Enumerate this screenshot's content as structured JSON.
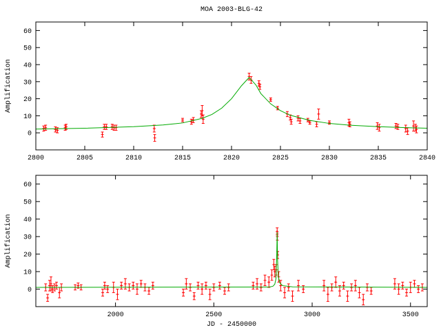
{
  "chart_data": [
    {
      "type": "scatter",
      "title": "MOA 2003-BLG-42",
      "ylabel": "Amplification",
      "xlim": [
        2800,
        2840
      ],
      "ylim": [
        -10,
        65
      ],
      "xticks": [
        2800,
        2805,
        2810,
        2815,
        2820,
        2825,
        2830,
        2835,
        2840
      ],
      "yticks": [
        0,
        10,
        20,
        30,
        40,
        50,
        60
      ],
      "series": [
        {
          "kind": "points",
          "color": "#ff0000",
          "x": [
            2800.8,
            2801,
            2802,
            2802.2,
            2803,
            2803.1,
            2806.8,
            2807,
            2807.2,
            2807.8,
            2808,
            2808.2,
            2812.1,
            2812.15,
            2815,
            2815.9,
            2816.1,
            2816.9,
            2817,
            2817.1,
            2821.8,
            2822,
            2822.8,
            2822.9,
            2824,
            2824.7,
            2825.7,
            2826,
            2826.1,
            2826.8,
            2827,
            2827.8,
            2828,
            2828.7,
            2828.9,
            2830,
            2832,
            2832.1,
            2834.9,
            2835.1,
            2836.8,
            2837,
            2837.8,
            2838,
            2838.6,
            2838.8,
            2838.9
          ],
          "values": [
            2.5,
            3,
            2,
            1.5,
            3,
            3.5,
            -1,
            3.5,
            3.5,
            3.5,
            3,
            3,
            2.5,
            -3,
            7.5,
            6.5,
            7.5,
            11,
            13,
            8,
            33,
            31,
            29,
            27,
            19.5,
            14.5,
            11,
            9,
            6.5,
            8.5,
            7,
            7.5,
            6,
            5,
            11,
            6,
            6,
            5,
            4,
            3,
            4,
            3.5,
            2.5,
            1,
            4,
            3,
            2
          ],
          "errors": [
            1.5,
            1.5,
            1.5,
            1.5,
            1.5,
            1.5,
            1.5,
            1.5,
            1.5,
            1.5,
            1.5,
            1.5,
            2,
            2,
            1,
            1.5,
            1.5,
            2,
            3,
            2.5,
            2,
            2,
            1.5,
            1.5,
            1,
            1,
            1.5,
            1.5,
            1.5,
            1.5,
            1.5,
            1,
            1,
            1.5,
            3,
            1,
            2,
            1.5,
            2,
            2,
            1.5,
            1.5,
            2,
            2,
            3,
            2,
            2
          ]
        },
        {
          "kind": "line",
          "color": "#00aa00",
          "x": [
            2800,
            2805,
            2810,
            2813,
            2815,
            2817,
            2818,
            2819,
            2820,
            2821,
            2821.8,
            2822.5,
            2823,
            2824,
            2825,
            2826,
            2828,
            2830,
            2832,
            2835,
            2838,
            2840
          ],
          "values": [
            2.2,
            2.7,
            3.6,
            4.6,
            5.8,
            8.5,
            10.8,
            14.5,
            20,
            27.5,
            32.5,
            28,
            23,
            17,
            13,
            10.3,
            7.3,
            5.5,
            4.5,
            3.6,
            3.0,
            2.7
          ]
        }
      ]
    },
    {
      "type": "scatter",
      "ylabel": "Amplification",
      "xlabel": "JD - 2450000",
      "xlim": [
        1595,
        3585
      ],
      "ylim": [
        -10,
        65
      ],
      "xticks": [
        2000,
        2500,
        3000,
        3500
      ],
      "yticks": [
        0,
        10,
        20,
        30,
        40,
        50,
        60
      ],
      "series": [
        {
          "kind": "points",
          "color": "#ff0000",
          "x": [
            1645,
            1655,
            1665,
            1672,
            1680,
            1690,
            1700,
            1715,
            1725,
            1795,
            1810,
            1825,
            1935,
            1945,
            1960,
            1990,
            2010,
            2030,
            2050,
            2070,
            2090,
            2110,
            2130,
            2150,
            2170,
            2190,
            2345,
            2360,
            2380,
            2400,
            2420,
            2440,
            2460,
            2480,
            2500,
            2530,
            2555,
            2575,
            2700,
            2720,
            2740,
            2760,
            2780,
            2795,
            2805,
            2810,
            2817,
            2822,
            2823,
            2825,
            2830,
            2840,
            2860,
            2880,
            2900,
            2930,
            2955,
            3060,
            3080,
            3100,
            3120,
            3140,
            3160,
            3180,
            3200,
            3220,
            3240,
            3260,
            3280,
            3300,
            3420,
            3440,
            3460,
            3480,
            3500,
            3520,
            3540,
            3560
          ],
          "values": [
            1,
            -5,
            2,
            3,
            0,
            1,
            2,
            -2,
            1,
            1,
            2,
            1,
            -2,
            2,
            0,
            1,
            -3,
            2,
            3,
            1,
            2,
            0,
            3,
            1,
            -1,
            2,
            -2,
            3,
            1,
            -4,
            2,
            0,
            2,
            -3,
            1,
            2,
            -1,
            1,
            2,
            3,
            1,
            5,
            4,
            8,
            14,
            10,
            11,
            33,
            30,
            19.5,
            7,
            2,
            -2,
            1,
            -4,
            2,
            0,
            2,
            -3,
            1,
            4,
            -1,
            2,
            -4,
            1,
            2,
            -2,
            -6,
            1,
            -1,
            3,
            0,
            2,
            -2,
            1,
            3,
            0,
            1
          ],
          "errors": [
            2,
            2,
            3,
            4,
            2,
            2,
            2,
            3,
            2,
            1.5,
            1.5,
            1.5,
            2,
            2,
            2,
            3,
            3,
            2,
            3,
            2,
            2,
            3,
            2,
            2,
            2,
            2,
            2,
            3,
            2,
            2,
            2,
            3,
            2,
            3,
            2,
            2,
            2,
            2,
            2,
            3,
            2,
            3,
            3,
            3,
            3,
            3,
            3,
            2,
            2,
            2,
            3,
            3,
            3,
            2,
            3,
            3,
            2,
            3,
            4,
            2,
            3,
            3,
            2,
            3,
            2,
            3,
            3,
            3,
            2,
            2,
            3,
            3,
            2,
            2,
            3,
            2,
            2,
            2
          ]
        },
        {
          "kind": "line",
          "color": "#00aa00",
          "x": [
            1595,
            2780,
            2800,
            2810,
            2816,
            2820,
            2822,
            2824,
            2828,
            2835,
            2850,
            2900,
            3585
          ],
          "values": [
            1,
            1.2,
            1.6,
            2.8,
            6,
            20,
            32.5,
            17,
            7.3,
            3.6,
            2,
            1.3,
            1
          ]
        }
      ]
    }
  ]
}
